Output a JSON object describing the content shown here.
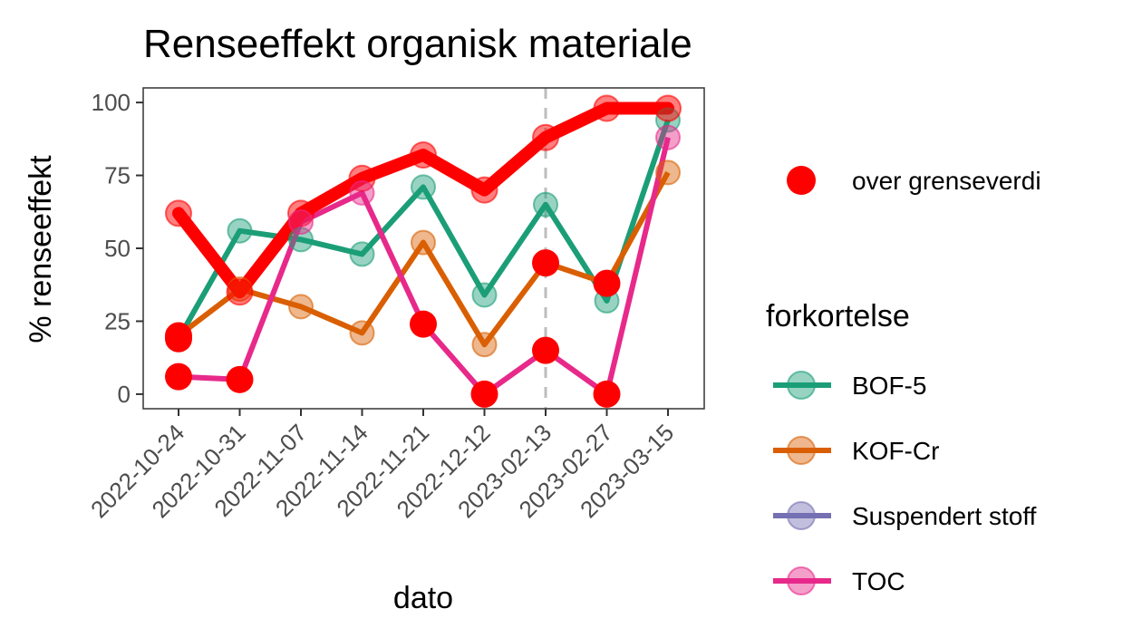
{
  "chart_data": {
    "type": "line",
    "title": "Renseeffekt organisk materiale",
    "xlabel": "dato",
    "ylabel": "% renseeffekt",
    "categories": [
      "2022-10-24",
      "2022-10-31",
      "2022-11-07",
      "2022-11-14",
      "2022-11-21",
      "2022-12-12",
      "2023-02-13",
      "2023-02-27",
      "2023-03-15"
    ],
    "ylim": [
      -5,
      105
    ],
    "yticks": [
      0,
      25,
      50,
      75,
      100
    ],
    "vline_category": "2023-02-13",
    "series": [
      {
        "name": "BOF-5",
        "color": "#1b9e77",
        "values": [
          19,
          56,
          53,
          48,
          71,
          34,
          65,
          32,
          94
        ]
      },
      {
        "name": "KOF-Cr",
        "color": "#d95f02",
        "values": [
          20,
          36,
          30,
          21,
          52,
          17,
          45,
          38,
          76
        ]
      },
      {
        "name": "Suspendert stoff",
        "color": "#7570b3",
        "values": [
          62,
          35,
          62,
          74,
          82,
          70,
          88,
          98,
          98
        ]
      },
      {
        "name": "TOC",
        "color": "#e7298a",
        "values": [
          6,
          5,
          59,
          69,
          24,
          0,
          15,
          0,
          88
        ]
      }
    ],
    "over_threshold": {
      "BOF-5": [
        true,
        false,
        false,
        false,
        false,
        false,
        false,
        false,
        false
      ],
      "KOF-Cr": [
        true,
        false,
        false,
        false,
        false,
        false,
        true,
        true,
        false
      ],
      "Suspendert stoff": [
        true,
        true,
        true,
        true,
        true,
        true,
        true,
        true,
        true
      ],
      "TOC": [
        true,
        true,
        false,
        false,
        true,
        true,
        true,
        true,
        false
      ]
    },
    "threshold_color": "#ff0000",
    "legend": {
      "threshold_label": "over grenseverdi",
      "title": "forkortelse",
      "entries": [
        "BOF-5",
        "KOF-Cr",
        "Suspendert stoff",
        "TOC"
      ]
    },
    "grid": false
  }
}
